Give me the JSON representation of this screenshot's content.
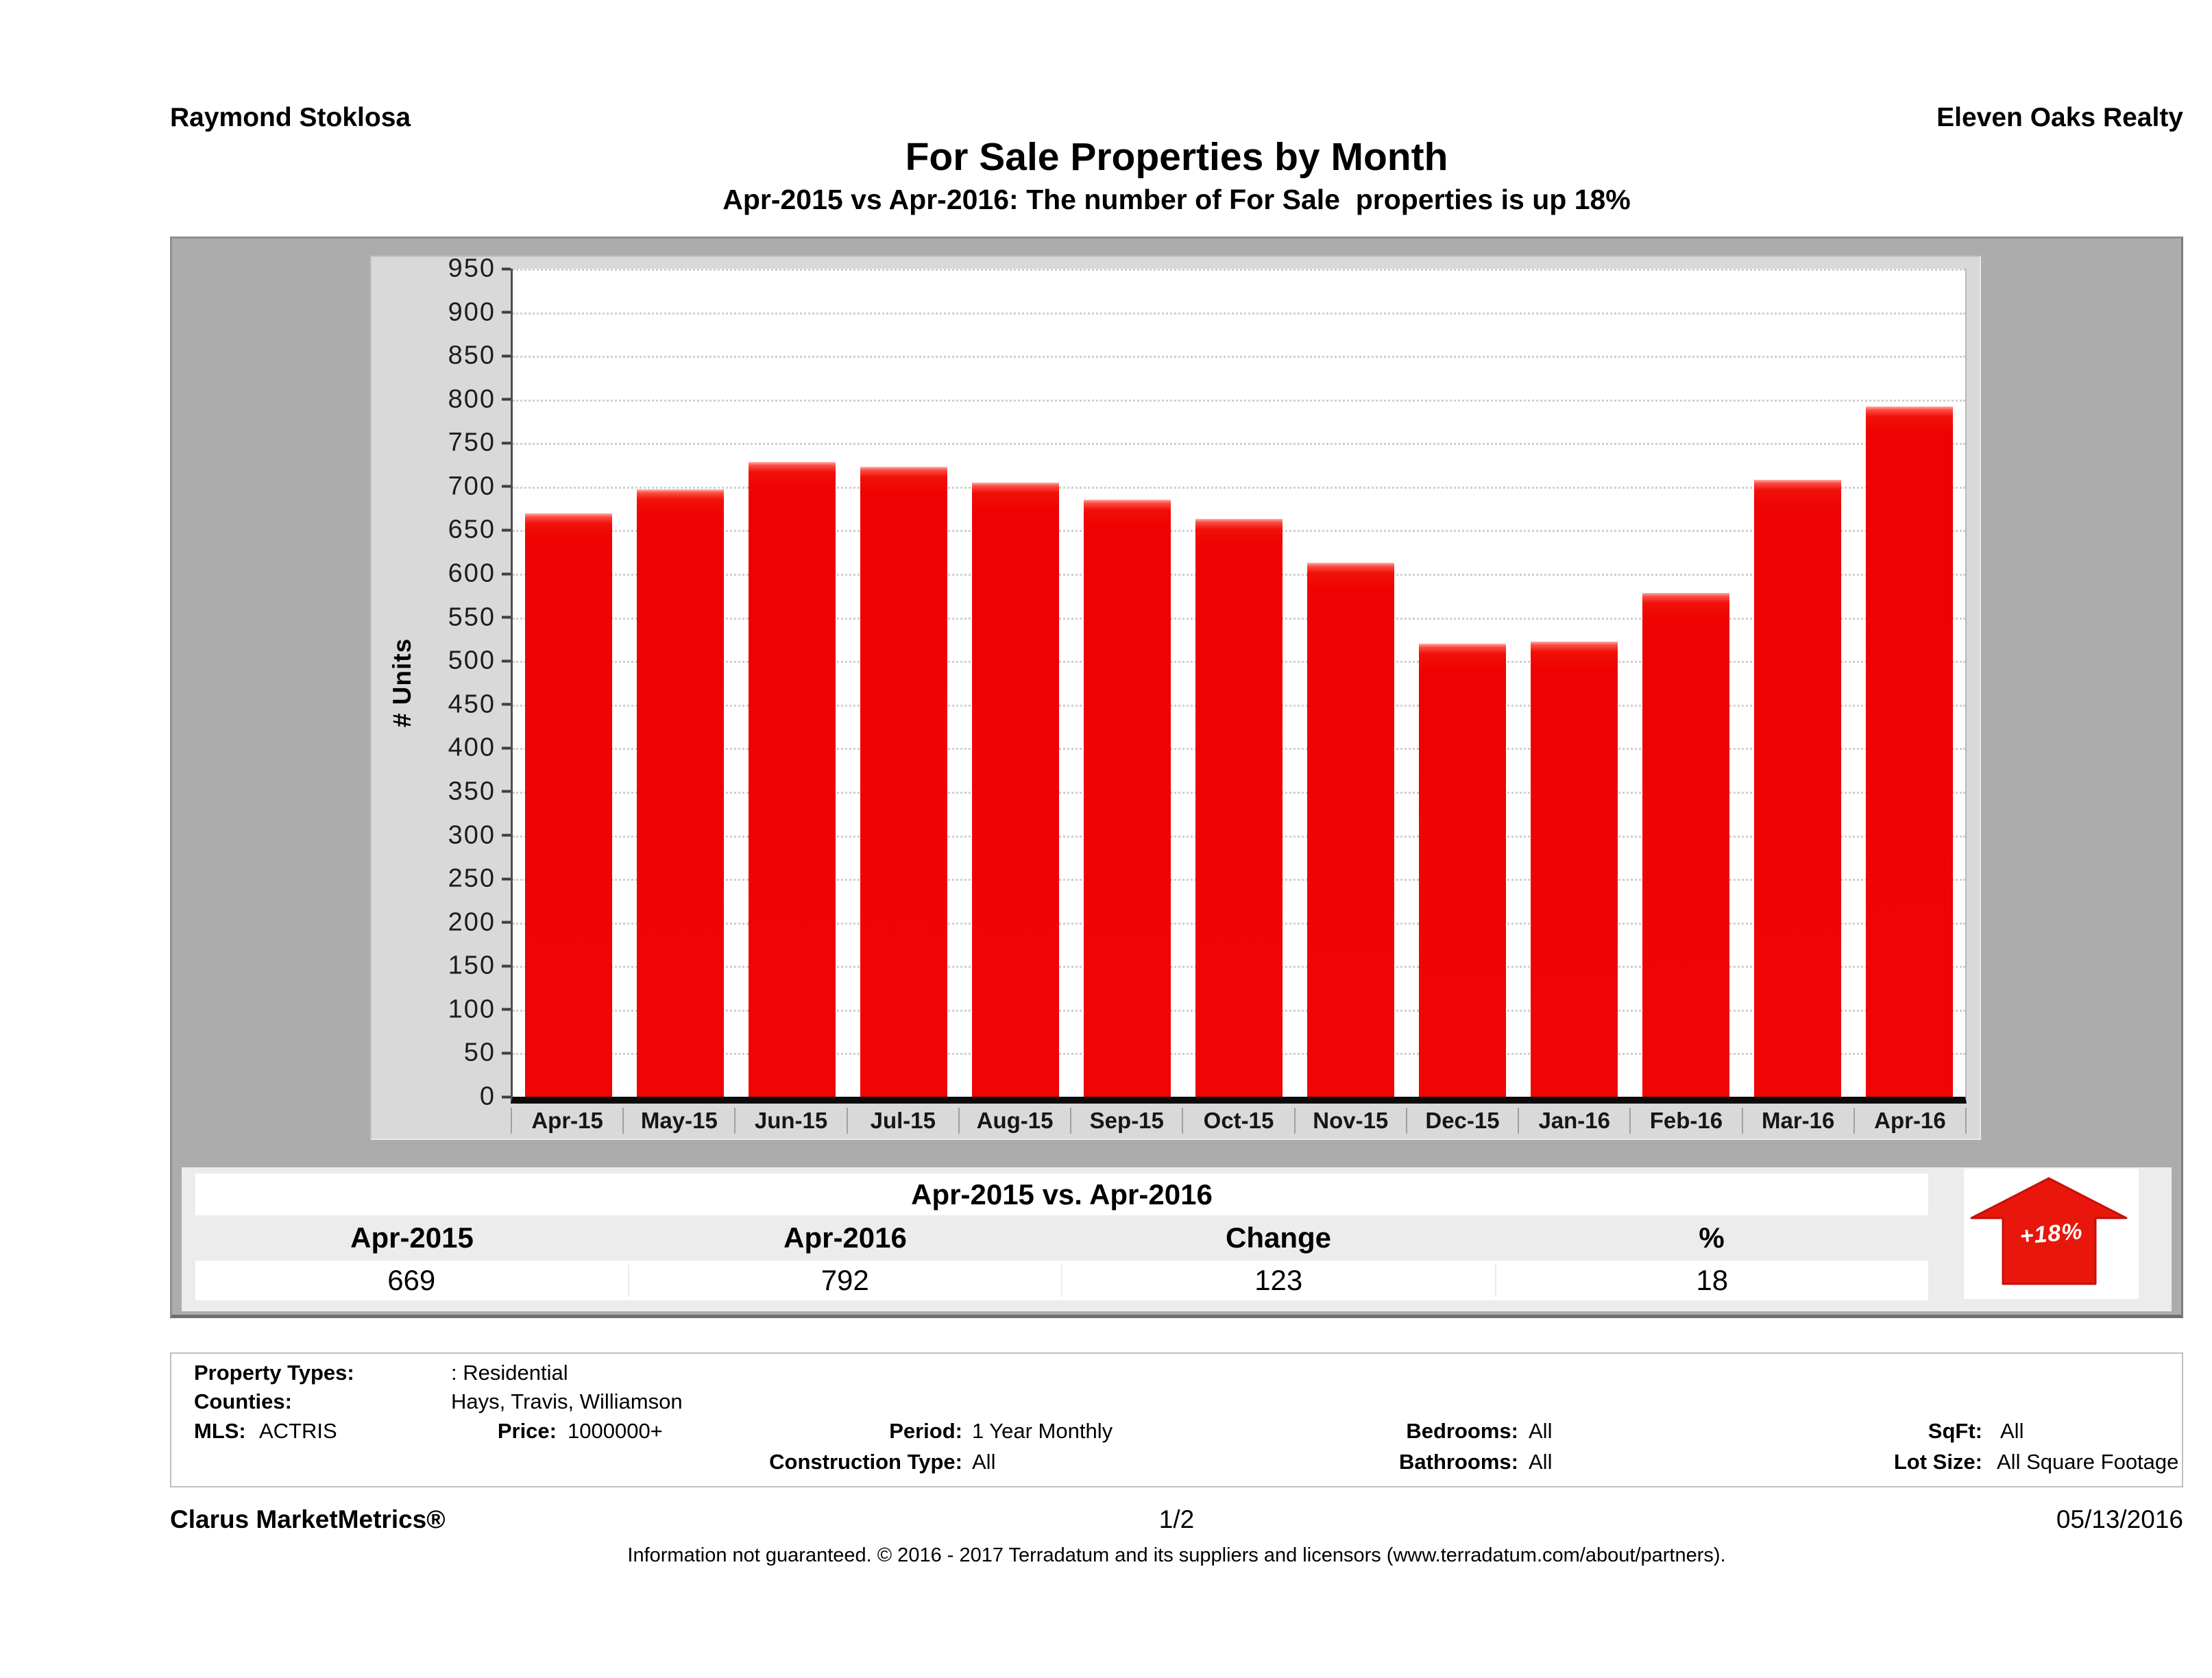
{
  "header": {
    "agent": "Raymond Stoklosa",
    "company": "Eleven Oaks Realty",
    "title": "For Sale Properties by Month",
    "subtitle": "Apr-2015 vs Apr-2016: The number of For Sale  properties is up 18%"
  },
  "chart_data": {
    "type": "bar",
    "title": "For Sale Properties by Month",
    "xlabel": "",
    "ylabel": "# Units",
    "ylim": [
      0,
      950
    ],
    "ytick_step": 50,
    "grid": "horizontal-dotted",
    "bar_color": "#f00404",
    "categories": [
      "Apr-15",
      "May-15",
      "Jun-15",
      "Jul-15",
      "Aug-15",
      "Sep-15",
      "Oct-15",
      "Nov-15",
      "Dec-15",
      "Jan-16",
      "Feb-16",
      "Mar-16",
      "Apr-16"
    ],
    "values": [
      669,
      697,
      728,
      723,
      705,
      685,
      663,
      613,
      520,
      522,
      578,
      708,
      792
    ]
  },
  "summary": {
    "title": "Apr-2015 vs. Apr-2016",
    "columns": [
      "Apr-2015",
      "Apr-2016",
      "Change",
      "%"
    ],
    "values": [
      "669",
      "792",
      "123",
      "18"
    ],
    "badge": "+18%",
    "arrow_color": "#e9160c"
  },
  "filters": {
    "property_types_label": "Property Types:",
    "property_types": ": Residential",
    "counties_label": "Counties:",
    "counties": "Hays, Travis, Williamson",
    "mls_label": "MLS:",
    "mls": "ACTRIS",
    "price_label": "Price:",
    "price": "1000000+",
    "period_label": "Period:",
    "period": "1 Year Monthly",
    "bedrooms_label": "Bedrooms:",
    "bedrooms": "All",
    "sqft_label": "SqFt:",
    "sqft": "All",
    "construction_label": "Construction Type:",
    "construction": "All",
    "bathrooms_label": "Bathrooms:",
    "bathrooms": "All",
    "lot_label": "Lot Size:",
    "lot": "All Square Footage"
  },
  "footer": {
    "brand": "Clarus MarketMetrics®",
    "page": "1/2",
    "date": "05/13/2016",
    "disclaimer": "Information not guaranteed. © 2016 - 2017 Terradatum and its suppliers and licensors (www.terradatum.com/about/partners)."
  }
}
